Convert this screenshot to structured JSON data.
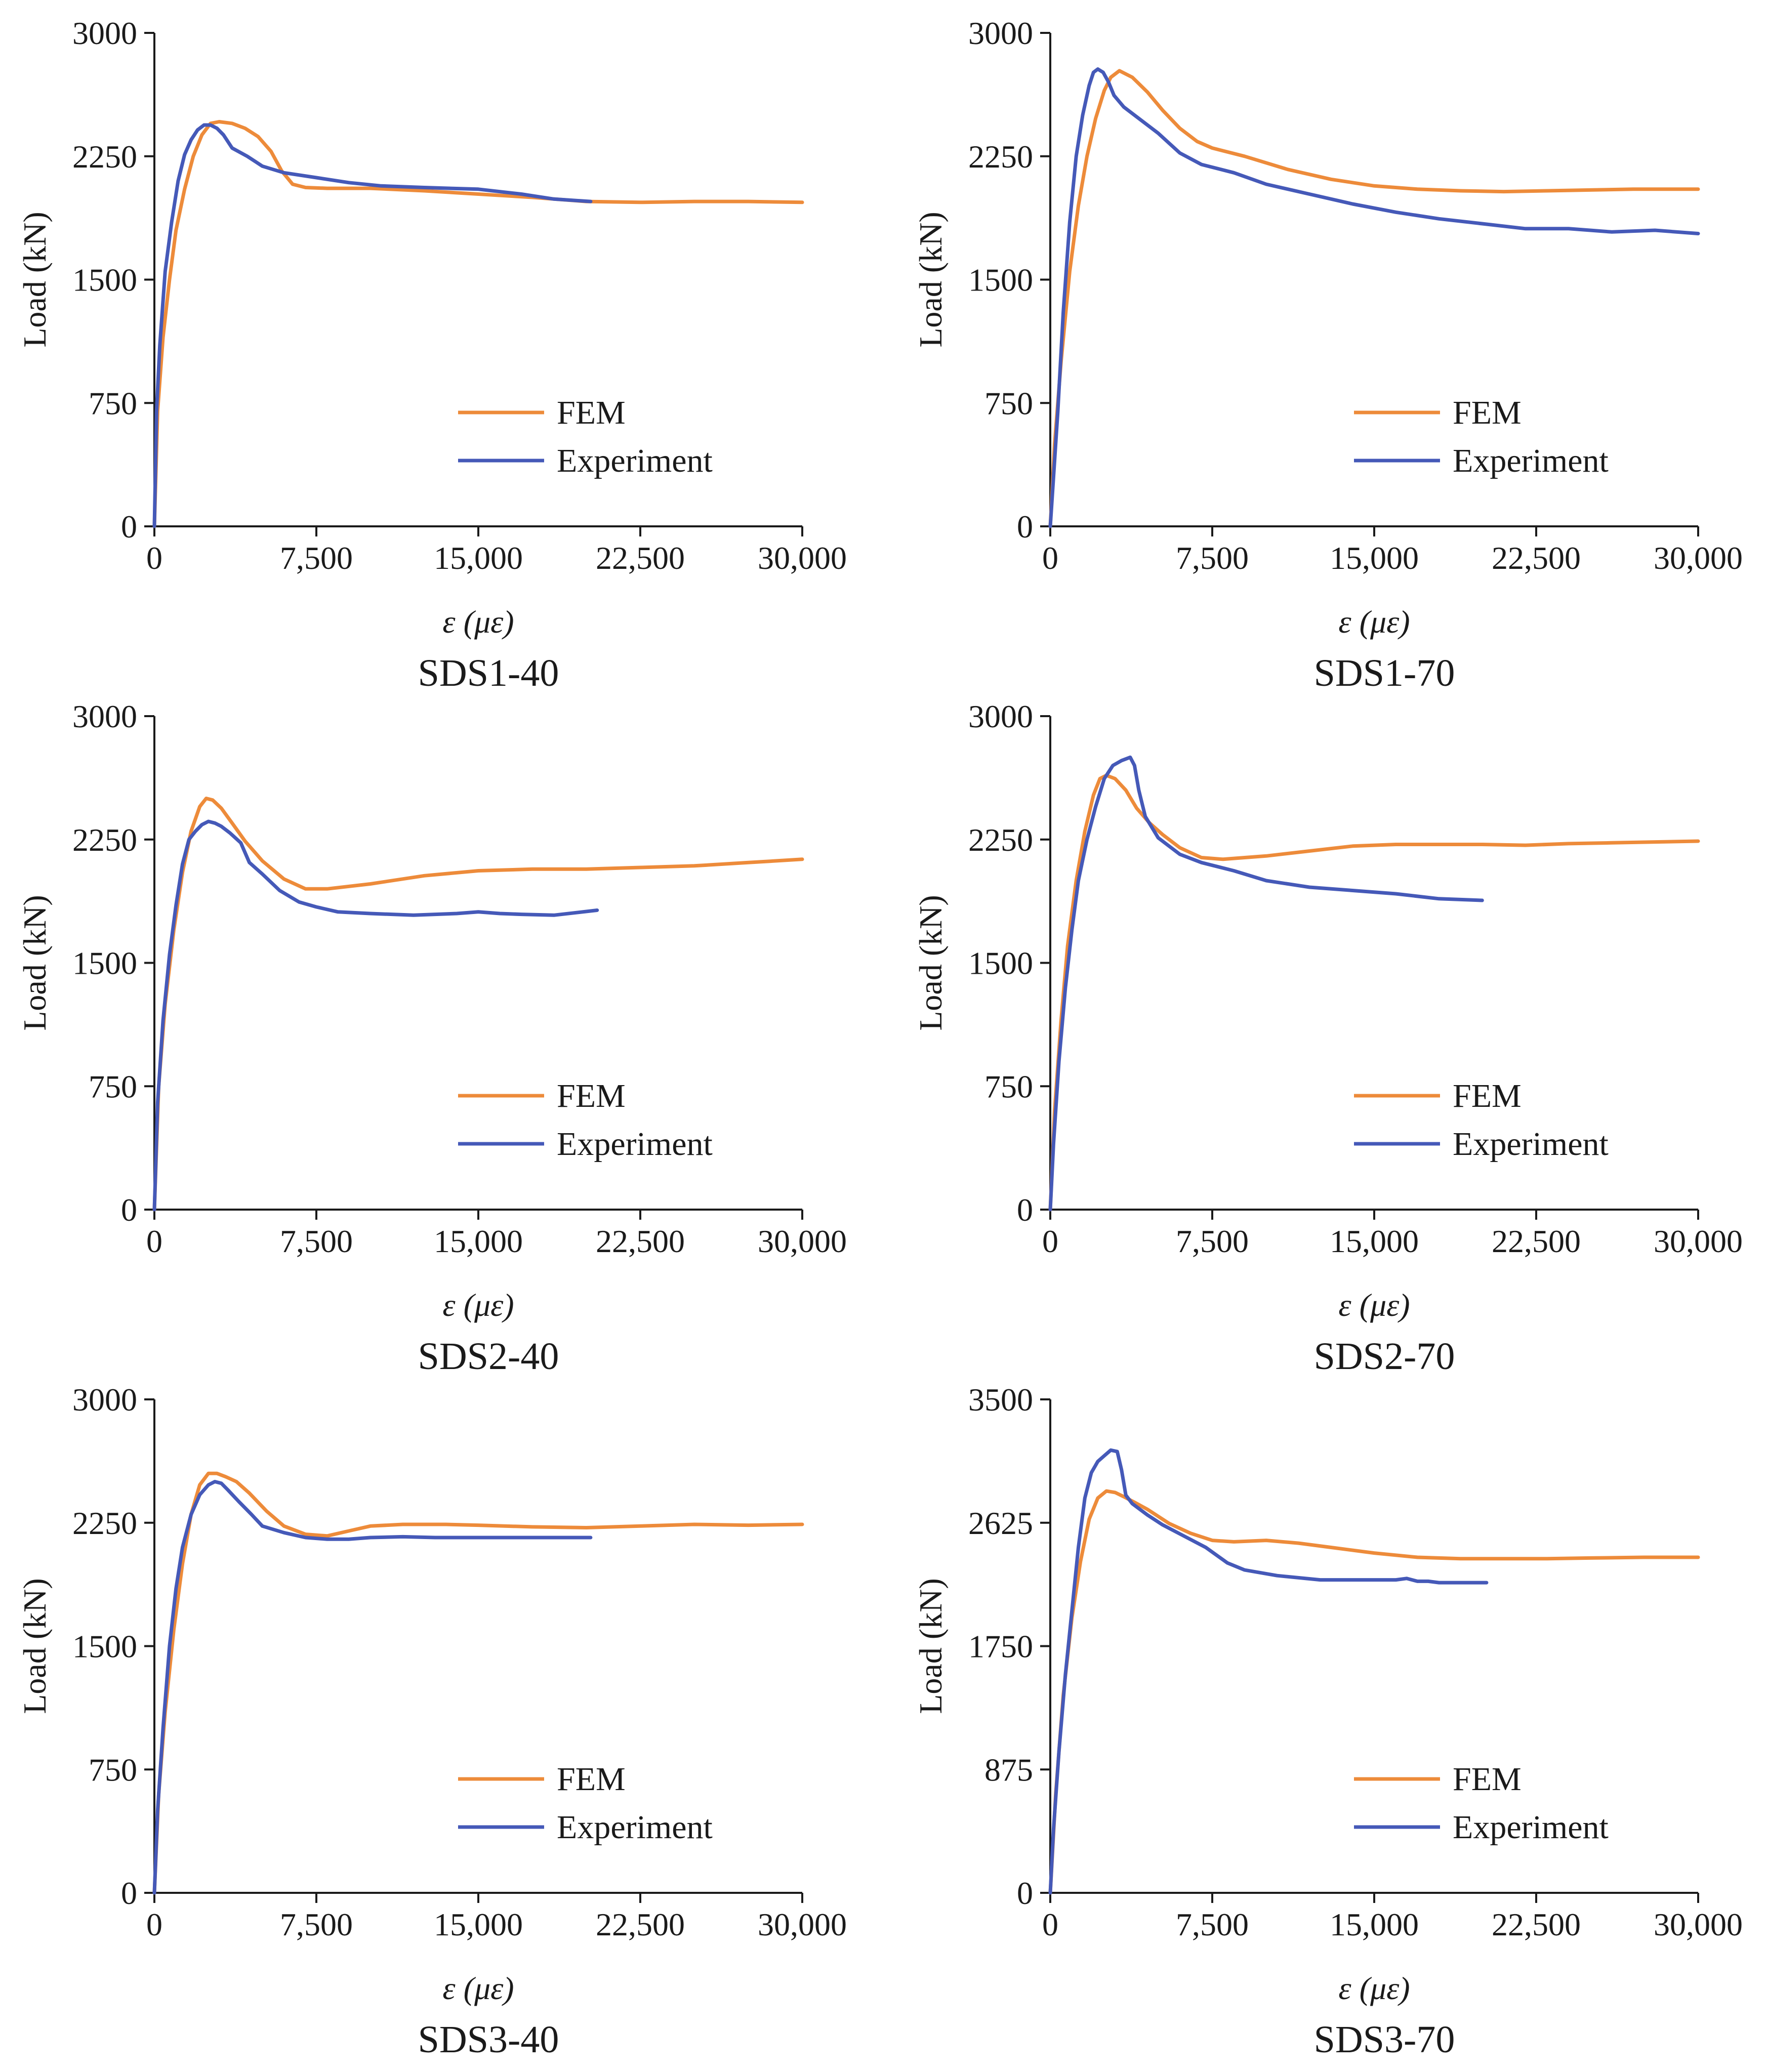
{
  "colors": {
    "fem": "#ED8B3A",
    "experiment": "#4559B8",
    "axis": "#1a1a1a"
  },
  "chart_data": [
    {
      "type": "line",
      "title": "SDS1-40",
      "xlabel": "ε (με)",
      "ylabel": "Load (kN)",
      "xlim": [
        0,
        30000
      ],
      "ylim": [
        0,
        3000
      ],
      "xticks": [
        0,
        7500,
        15000,
        22500,
        30000
      ],
      "xtick_labels": [
        "0",
        "7,500",
        "15,000",
        "22,500",
        "30,000"
      ],
      "yticks": [
        0,
        750,
        1500,
        2250,
        3000
      ],
      "ytick_labels": [
        "0",
        "750",
        "1500",
        "2250",
        "3000"
      ],
      "legend": "center-right",
      "series": [
        {
          "name": "FEM",
          "color": "#ED8B3A",
          "x": [
            0,
            150,
            400,
            700,
            1000,
            1400,
            1800,
            2200,
            2600,
            3000,
            3600,
            4200,
            4800,
            5400,
            5900,
            6400,
            7000,
            8000,
            10000,
            12500,
            15000,
            17500,
            20000,
            22500,
            25000,
            27500,
            30000
          ],
          "y": [
            0,
            700,
            1150,
            1500,
            1800,
            2050,
            2250,
            2380,
            2450,
            2460,
            2450,
            2420,
            2370,
            2280,
            2160,
            2080,
            2060,
            2055,
            2055,
            2040,
            2020,
            2000,
            1975,
            1970,
            1975,
            1975,
            1970
          ]
        },
        {
          "name": "Experiment",
          "color": "#4559B8",
          "x": [
            0,
            100,
            250,
            500,
            800,
            1100,
            1400,
            1700,
            2000,
            2300,
            2600,
            2900,
            3200,
            3600,
            4300,
            5000,
            6000,
            7500,
            9000,
            10500,
            12500,
            15000,
            17000,
            18500,
            20200
          ],
          "y": [
            0,
            700,
            1100,
            1550,
            1850,
            2100,
            2260,
            2350,
            2410,
            2440,
            2440,
            2420,
            2380,
            2300,
            2250,
            2190,
            2150,
            2120,
            2090,
            2070,
            2060,
            2050,
            2020,
            1990,
            1975
          ]
        }
      ]
    },
    {
      "type": "line",
      "title": "SDS1-70",
      "xlabel": "ε (με)",
      "ylabel": "Load (kN)",
      "xlim": [
        0,
        30000
      ],
      "ylim": [
        0,
        3000
      ],
      "xticks": [
        0,
        7500,
        15000,
        22500,
        30000
      ],
      "xtick_labels": [
        "0",
        "7,500",
        "15,000",
        "22,500",
        "30,000"
      ],
      "yticks": [
        0,
        750,
        1500,
        2250,
        3000
      ],
      "ytick_labels": [
        "0",
        "750",
        "1500",
        "2250",
        "3000"
      ],
      "legend": "center-right",
      "series": [
        {
          "name": "FEM",
          "color": "#ED8B3A",
          "x": [
            0,
            200,
            500,
            900,
            1300,
            1700,
            2100,
            2500,
            2800,
            3200,
            3800,
            4500,
            5200,
            6000,
            6800,
            7500,
            9000,
            11000,
            13000,
            15000,
            17000,
            19000,
            21000,
            23000,
            25000,
            27000,
            30000
          ],
          "y": [
            0,
            500,
            1000,
            1550,
            1950,
            2250,
            2480,
            2650,
            2730,
            2770,
            2730,
            2640,
            2530,
            2420,
            2340,
            2300,
            2250,
            2170,
            2110,
            2070,
            2050,
            2040,
            2035,
            2040,
            2045,
            2050,
            2050
          ]
        },
        {
          "name": "Experiment",
          "color": "#4559B8",
          "x": [
            0,
            150,
            350,
            600,
            900,
            1200,
            1500,
            1800,
            2000,
            2200,
            2450,
            2700,
            2950,
            3400,
            4200,
            5000,
            6000,
            7000,
            8500,
            10000,
            12000,
            14000,
            16000,
            18000,
            20000,
            22000,
            24000,
            26000,
            28000,
            30000
          ],
          "y": [
            0,
            300,
            700,
            1300,
            1850,
            2250,
            2500,
            2680,
            2760,
            2780,
            2760,
            2700,
            2620,
            2550,
            2470,
            2390,
            2270,
            2200,
            2150,
            2080,
            2020,
            1960,
            1910,
            1870,
            1840,
            1810,
            1810,
            1790,
            1800,
            1780
          ]
        }
      ]
    },
    {
      "type": "line",
      "title": "SDS2-40",
      "xlabel": "ε (με)",
      "ylabel": "Load (kN)",
      "xlim": [
        0,
        30000
      ],
      "ylim": [
        0,
        3000
      ],
      "xticks": [
        0,
        7500,
        15000,
        22500,
        30000
      ],
      "xtick_labels": [
        "0",
        "7,500",
        "15,000",
        "22,500",
        "30,000"
      ],
      "yticks": [
        0,
        750,
        1500,
        2250,
        3000
      ],
      "ytick_labels": [
        "0",
        "750",
        "1500",
        "2250",
        "3000"
      ],
      "legend": "center-right",
      "series": [
        {
          "name": "FEM",
          "color": "#ED8B3A",
          "x": [
            0,
            200,
            500,
            900,
            1300,
            1700,
            2100,
            2400,
            2700,
            3100,
            3600,
            4200,
            5000,
            6000,
            7000,
            8000,
            10000,
            12500,
            15000,
            17500,
            20000,
            22500,
            25000,
            27500,
            30000
          ],
          "y": [
            0,
            750,
            1250,
            1700,
            2050,
            2300,
            2450,
            2500,
            2490,
            2440,
            2350,
            2240,
            2120,
            2010,
            1950,
            1950,
            1980,
            2030,
            2060,
            2070,
            2070,
            2080,
            2090,
            2110,
            2130
          ]
        },
        {
          "name": "Experiment",
          "color": "#4559B8",
          "x": [
            0,
            150,
            400,
            700,
            1000,
            1300,
            1600,
            1900,
            2200,
            2500,
            2800,
            3100,
            3500,
            4000,
            4400,
            5000,
            5800,
            6700,
            7500,
            8500,
            10000,
            12000,
            14000,
            15000,
            16000,
            17000,
            18500,
            20500
          ],
          "y": [
            0,
            650,
            1150,
            1550,
            1850,
            2100,
            2250,
            2300,
            2340,
            2360,
            2350,
            2330,
            2290,
            2230,
            2110,
            2040,
            1940,
            1870,
            1840,
            1810,
            1800,
            1790,
            1800,
            1810,
            1800,
            1795,
            1790,
            1820
          ]
        }
      ]
    },
    {
      "type": "line",
      "title": "SDS2-70",
      "xlabel": "ε (με)",
      "ylabel": "Load (kN)",
      "xlim": [
        0,
        30000
      ],
      "ylim": [
        0,
        3000
      ],
      "xticks": [
        0,
        7500,
        15000,
        22500,
        30000
      ],
      "xtick_labels": [
        "0",
        "7,500",
        "15,000",
        "22,500",
        "30,000"
      ],
      "yticks": [
        0,
        750,
        1500,
        2250,
        3000
      ],
      "ytick_labels": [
        "0",
        "750",
        "1500",
        "2250",
        "3000"
      ],
      "legend": "center-right",
      "series": [
        {
          "name": "FEM",
          "color": "#ED8B3A",
          "x": [
            0,
            200,
            500,
            800,
            1200,
            1600,
            2000,
            2300,
            2600,
            3000,
            3500,
            4000,
            4600,
            5200,
            6000,
            7000,
            8000,
            10000,
            12000,
            14000,
            16000,
            18000,
            20000,
            22000,
            24000,
            26000,
            28000,
            30000
          ],
          "y": [
            0,
            600,
            1150,
            1600,
            2000,
            2300,
            2520,
            2620,
            2640,
            2620,
            2550,
            2440,
            2350,
            2280,
            2200,
            2140,
            2130,
            2150,
            2180,
            2210,
            2220,
            2220,
            2220,
            2215,
            2225,
            2230,
            2235,
            2240
          ]
        },
        {
          "name": "Experiment",
          "color": "#4559B8",
          "x": [
            0,
            150,
            400,
            700,
            1000,
            1300,
            1700,
            2100,
            2500,
            2900,
            3300,
            3700,
            3900,
            4100,
            4400,
            5000,
            6000,
            7000,
            8500,
            10000,
            12000,
            14000,
            16000,
            18000,
            20000
          ],
          "y": [
            0,
            400,
            900,
            1350,
            1700,
            2000,
            2250,
            2450,
            2620,
            2700,
            2730,
            2750,
            2700,
            2550,
            2390,
            2260,
            2160,
            2110,
            2060,
            2000,
            1960,
            1940,
            1920,
            1890,
            1880
          ]
        }
      ]
    },
    {
      "type": "line",
      "title": "SDS3-40",
      "xlabel": "ε (με)",
      "ylabel": "Load (kN)",
      "xlim": [
        0,
        30000
      ],
      "ylim": [
        0,
        3000
      ],
      "xticks": [
        0,
        7500,
        15000,
        22500,
        30000
      ],
      "xtick_labels": [
        "0",
        "7,500",
        "15,000",
        "22,500",
        "30,000"
      ],
      "yticks": [
        0,
        750,
        1500,
        2250,
        3000
      ],
      "ytick_labels": [
        "0",
        "750",
        "1500",
        "2250",
        "3000"
      ],
      "legend": "center-right",
      "series": [
        {
          "name": "FEM",
          "color": "#ED8B3A",
          "x": [
            0,
            200,
            500,
            900,
            1300,
            1700,
            2100,
            2500,
            2900,
            3300,
            3800,
            4400,
            5200,
            6000,
            7000,
            8000,
            9000,
            10000,
            11500,
            13500,
            15000,
            17500,
            20000,
            22500,
            25000,
            27500,
            30000
          ],
          "y": [
            0,
            600,
            1100,
            1600,
            2000,
            2300,
            2480,
            2550,
            2550,
            2530,
            2500,
            2430,
            2320,
            2230,
            2180,
            2170,
            2200,
            2230,
            2240,
            2240,
            2235,
            2225,
            2220,
            2230,
            2240,
            2235,
            2240
          ]
        },
        {
          "name": "Experiment",
          "color": "#4559B8",
          "x": [
            0,
            150,
            400,
            700,
            1000,
            1300,
            1700,
            2100,
            2500,
            2800,
            3100,
            3400,
            3900,
            4500,
            5000,
            6000,
            7000,
            8000,
            9000,
            10000,
            11500,
            13000,
            15000,
            17000,
            20200
          ],
          "y": [
            0,
            500,
            1000,
            1500,
            1850,
            2100,
            2300,
            2420,
            2480,
            2500,
            2490,
            2450,
            2380,
            2300,
            2230,
            2190,
            2160,
            2150,
            2150,
            2160,
            2165,
            2160,
            2160,
            2160,
            2160
          ]
        }
      ]
    },
    {
      "type": "line",
      "title": "SDS3-70",
      "xlabel": "ε (με)",
      "ylabel": "Load (kN)",
      "xlim": [
        0,
        30000
      ],
      "ylim": [
        0,
        3500
      ],
      "xticks": [
        0,
        7500,
        15000,
        22500,
        30000
      ],
      "xtick_labels": [
        "0",
        "7,500",
        "15,000",
        "22,500",
        "30,000"
      ],
      "yticks": [
        0,
        875,
        1750,
        2625,
        3500
      ],
      "ytick_labels": [
        "0",
        "875",
        "1750",
        "2625",
        "3500"
      ],
      "legend": "center-right",
      "series": [
        {
          "name": "FEM",
          "color": "#ED8B3A",
          "x": [
            0,
            250,
            600,
            1000,
            1400,
            1800,
            2200,
            2600,
            3000,
            3400,
            3900,
            4500,
            5500,
            6500,
            7500,
            8500,
            10000,
            11500,
            13000,
            15000,
            17000,
            19000,
            21000,
            23000,
            25000,
            27500,
            30000
          ],
          "y": [
            0,
            700,
            1400,
            1950,
            2350,
            2650,
            2800,
            2850,
            2840,
            2810,
            2770,
            2720,
            2620,
            2550,
            2500,
            2490,
            2500,
            2480,
            2450,
            2410,
            2380,
            2370,
            2370,
            2370,
            2375,
            2380,
            2380
          ]
        },
        {
          "name": "Experiment",
          "color": "#4559B8",
          "x": [
            0,
            150,
            400,
            700,
            1000,
            1300,
            1600,
            1900,
            2200,
            2500,
            2800,
            3100,
            3300,
            3500,
            3800,
            4500,
            5200,
            6200,
            7200,
            8200,
            9000,
            10500,
            12500,
            14000,
            16000,
            16500,
            17000,
            17500,
            18000,
            18500,
            20200
          ],
          "y": [
            0,
            450,
            1000,
            1550,
            2000,
            2450,
            2800,
            2980,
            3060,
            3100,
            3140,
            3130,
            3000,
            2820,
            2760,
            2680,
            2610,
            2530,
            2450,
            2340,
            2290,
            2250,
            2220,
            2220,
            2220,
            2230,
            2210,
            2210,
            2200,
            2200,
            2200
          ]
        }
      ]
    }
  ]
}
